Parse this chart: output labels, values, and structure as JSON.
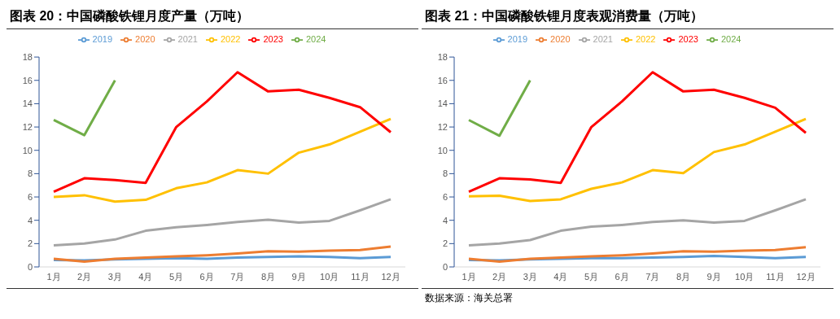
{
  "chart_data": [
    {
      "type": "line",
      "title": "图表 20：中国磷酸铁锂月度产量（万吨）",
      "categories": [
        "1月",
        "2月",
        "3月",
        "4月",
        "5月",
        "6月",
        "7月",
        "8月",
        "9月",
        "10月",
        "11月",
        "12月"
      ],
      "ylim": [
        0,
        18
      ],
      "yticks": [
        0,
        2,
        4,
        6,
        8,
        10,
        12,
        14,
        16,
        18
      ],
      "grid": false,
      "legend": "top",
      "marker": "none",
      "series": [
        {
          "name": "2019",
          "color": "#5b9bd5",
          "values": [
            0.6,
            0.55,
            0.65,
            0.7,
            0.75,
            0.7,
            0.8,
            0.85,
            0.9,
            0.85,
            0.75,
            0.85
          ]
        },
        {
          "name": "2020",
          "color": "#ed7d31",
          "values": [
            0.7,
            0.45,
            0.7,
            0.8,
            0.9,
            1.0,
            1.15,
            1.35,
            1.3,
            1.4,
            1.45,
            1.75
          ]
        },
        {
          "name": "2021",
          "color": "#a5a5a5",
          "values": [
            1.85,
            2.0,
            2.35,
            3.1,
            3.4,
            3.6,
            3.85,
            4.05,
            3.8,
            3.95,
            4.85,
            5.8
          ]
        },
        {
          "name": "2022",
          "color": "#ffc000",
          "values": [
            6.0,
            6.15,
            5.6,
            5.75,
            6.75,
            7.25,
            8.3,
            8.0,
            9.8,
            10.5,
            11.6,
            12.7
          ]
        },
        {
          "name": "2023",
          "color": "#ff0000",
          "values": [
            6.45,
            7.6,
            7.45,
            7.2,
            12.0,
            14.2,
            16.7,
            15.05,
            15.2,
            14.5,
            13.7,
            11.55
          ]
        },
        {
          "name": "2024",
          "color": "#70ad47",
          "values": [
            12.6,
            11.3,
            16.0,
            null,
            null,
            null,
            null,
            null,
            null,
            null,
            null,
            null
          ]
        }
      ]
    },
    {
      "type": "line",
      "title": "图表 21：中国磷酸铁锂月度表观消费量（万吨）",
      "annotations": [
        "数据来源：海关总署"
      ],
      "categories": [
        "1月",
        "2月",
        "3月",
        "4月",
        "5月",
        "6月",
        "7月",
        "8月",
        "9月",
        "10月",
        "11月",
        "12月"
      ],
      "ylim": [
        0,
        18
      ],
      "yticks": [
        0,
        2,
        4,
        6,
        8,
        10,
        12,
        14,
        16,
        18
      ],
      "grid": false,
      "legend": "top",
      "marker": "none",
      "series": [
        {
          "name": "2019",
          "color": "#5b9bd5",
          "values": [
            0.6,
            0.55,
            0.65,
            0.7,
            0.75,
            0.75,
            0.8,
            0.85,
            0.95,
            0.85,
            0.75,
            0.85
          ]
        },
        {
          "name": "2020",
          "color": "#ed7d31",
          "values": [
            0.7,
            0.45,
            0.7,
            0.8,
            0.9,
            1.0,
            1.15,
            1.35,
            1.3,
            1.4,
            1.45,
            1.7
          ]
        },
        {
          "name": "2021",
          "color": "#a5a5a5",
          "values": [
            1.85,
            2.0,
            2.3,
            3.1,
            3.45,
            3.6,
            3.85,
            4.0,
            3.8,
            3.95,
            4.85,
            5.8
          ]
        },
        {
          "name": "2022",
          "color": "#ffc000",
          "values": [
            6.05,
            6.1,
            5.65,
            5.8,
            6.7,
            7.25,
            8.3,
            8.05,
            9.85,
            10.5,
            11.6,
            12.7
          ]
        },
        {
          "name": "2023",
          "color": "#ff0000",
          "values": [
            6.45,
            7.6,
            7.5,
            7.2,
            12.0,
            14.2,
            16.7,
            15.05,
            15.2,
            14.5,
            13.65,
            11.5
          ]
        },
        {
          "name": "2024",
          "color": "#70ad47",
          "values": [
            12.6,
            11.25,
            16.0,
            null,
            null,
            null,
            null,
            null,
            null,
            null,
            null,
            null
          ]
        }
      ]
    }
  ]
}
